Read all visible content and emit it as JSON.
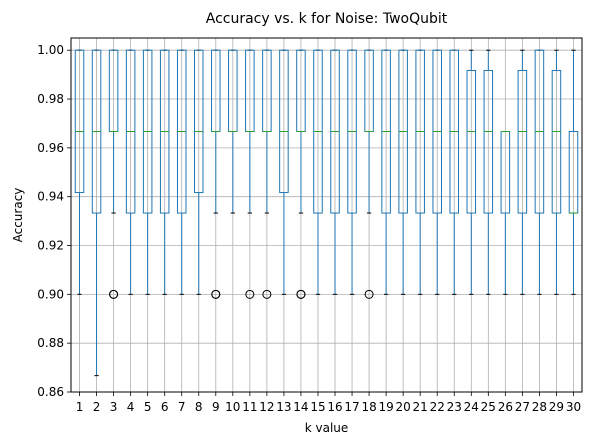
{
  "chart_data": {
    "type": "box",
    "title": "Accuracy vs. k for Noise: TwoQubit",
    "xlabel": "k value",
    "ylabel": "Accuracy",
    "ylim": [
      0.86,
      1.005
    ],
    "yticks": [
      "0.86",
      "0.88",
      "0.90",
      "0.92",
      "0.94",
      "0.96",
      "0.98",
      "1.00"
    ],
    "grid": true,
    "colors": {
      "box": "#1f77b4",
      "median": "#2ca02c",
      "whisker": "#1f77b4",
      "cap": "#000000",
      "flier": "#000000",
      "grid": "#b0b0b0"
    },
    "categories": [
      "1",
      "2",
      "3",
      "4",
      "5",
      "6",
      "7",
      "8",
      "9",
      "10",
      "11",
      "12",
      "13",
      "14",
      "15",
      "16",
      "17",
      "18",
      "19",
      "20",
      "21",
      "22",
      "23",
      "24",
      "25",
      "26",
      "27",
      "28",
      "29",
      "30"
    ],
    "boxes": [
      {
        "k": "1",
        "whislo": 0.9,
        "q1": 0.9417,
        "med": 0.9667,
        "q3": 1.0,
        "whishi": 1.0,
        "fliers": []
      },
      {
        "k": "2",
        "whislo": 0.8667,
        "q1": 0.9333,
        "med": 0.9667,
        "q3": 1.0,
        "whishi": 1.0,
        "fliers": []
      },
      {
        "k": "3",
        "whislo": 0.9333,
        "q1": 0.9667,
        "med": 0.9667,
        "q3": 1.0,
        "whishi": 1.0,
        "fliers": [
          0.9,
          0.9
        ]
      },
      {
        "k": "4",
        "whislo": 0.9,
        "q1": 0.9333,
        "med": 0.9667,
        "q3": 1.0,
        "whishi": 1.0,
        "fliers": []
      },
      {
        "k": "5",
        "whislo": 0.9,
        "q1": 0.9333,
        "med": 0.9667,
        "q3": 1.0,
        "whishi": 1.0,
        "fliers": []
      },
      {
        "k": "6",
        "whislo": 0.9,
        "q1": 0.9333,
        "med": 0.9667,
        "q3": 1.0,
        "whishi": 1.0,
        "fliers": []
      },
      {
        "k": "7",
        "whislo": 0.9,
        "q1": 0.9333,
        "med": 0.9667,
        "q3": 1.0,
        "whishi": 1.0,
        "fliers": []
      },
      {
        "k": "8",
        "whislo": 0.9,
        "q1": 0.9417,
        "med": 0.9667,
        "q3": 1.0,
        "whishi": 1.0,
        "fliers": []
      },
      {
        "k": "9",
        "whislo": 0.9333,
        "q1": 0.9667,
        "med": 0.9667,
        "q3": 1.0,
        "whishi": 1.0,
        "fliers": [
          0.9,
          0.9
        ]
      },
      {
        "k": "10",
        "whislo": 0.9333,
        "q1": 0.9667,
        "med": 0.9667,
        "q3": 1.0,
        "whishi": 1.0,
        "fliers": []
      },
      {
        "k": "11",
        "whislo": 0.9333,
        "q1": 0.9667,
        "med": 0.9667,
        "q3": 1.0,
        "whishi": 1.0,
        "fliers": [
          0.9
        ]
      },
      {
        "k": "12",
        "whislo": 0.9333,
        "q1": 0.9667,
        "med": 0.9667,
        "q3": 1.0,
        "whishi": 1.0,
        "fliers": [
          0.9
        ]
      },
      {
        "k": "13",
        "whislo": 0.9,
        "q1": 0.9417,
        "med": 0.9667,
        "q3": 1.0,
        "whishi": 1.0,
        "fliers": []
      },
      {
        "k": "14",
        "whislo": 0.9333,
        "q1": 0.9667,
        "med": 0.9667,
        "q3": 1.0,
        "whishi": 1.0,
        "fliers": [
          0.9,
          0.9
        ]
      },
      {
        "k": "15",
        "whislo": 0.9,
        "q1": 0.9333,
        "med": 0.9667,
        "q3": 1.0,
        "whishi": 1.0,
        "fliers": []
      },
      {
        "k": "16",
        "whislo": 0.9,
        "q1": 0.9333,
        "med": 0.9667,
        "q3": 1.0,
        "whishi": 1.0,
        "fliers": []
      },
      {
        "k": "17",
        "whislo": 0.9,
        "q1": 0.9333,
        "med": 0.9667,
        "q3": 1.0,
        "whishi": 1.0,
        "fliers": []
      },
      {
        "k": "18",
        "whislo": 0.9333,
        "q1": 0.9667,
        "med": 0.9667,
        "q3": 1.0,
        "whishi": 1.0,
        "fliers": [
          0.9
        ]
      },
      {
        "k": "19",
        "whislo": 0.9,
        "q1": 0.9333,
        "med": 0.9667,
        "q3": 1.0,
        "whishi": 1.0,
        "fliers": []
      },
      {
        "k": "20",
        "whislo": 0.9,
        "q1": 0.9333,
        "med": 0.9667,
        "q3": 1.0,
        "whishi": 1.0,
        "fliers": []
      },
      {
        "k": "21",
        "whislo": 0.9,
        "q1": 0.9333,
        "med": 0.9667,
        "q3": 1.0,
        "whishi": 1.0,
        "fliers": []
      },
      {
        "k": "22",
        "whislo": 0.9,
        "q1": 0.9333,
        "med": 0.9667,
        "q3": 1.0,
        "whishi": 1.0,
        "fliers": []
      },
      {
        "k": "23",
        "whislo": 0.9,
        "q1": 0.9333,
        "med": 0.9667,
        "q3": 1.0,
        "whishi": 1.0,
        "fliers": []
      },
      {
        "k": "24",
        "whislo": 0.9,
        "q1": 0.9333,
        "med": 0.9667,
        "q3": 0.9917,
        "whishi": 1.0,
        "fliers": []
      },
      {
        "k": "25",
        "whislo": 0.9,
        "q1": 0.9333,
        "med": 0.9667,
        "q3": 0.9917,
        "whishi": 1.0,
        "fliers": []
      },
      {
        "k": "26",
        "whislo": 0.9,
        "q1": 0.9333,
        "med": 0.9667,
        "q3": 0.9667,
        "whishi": 0.9667,
        "fliers": []
      },
      {
        "k": "27",
        "whislo": 0.9,
        "q1": 0.9333,
        "med": 0.9667,
        "q3": 0.9917,
        "whishi": 1.0,
        "fliers": []
      },
      {
        "k": "28",
        "whislo": 0.9,
        "q1": 0.9333,
        "med": 0.9667,
        "q3": 1.0,
        "whishi": 1.0,
        "fliers": []
      },
      {
        "k": "29",
        "whislo": 0.9,
        "q1": 0.9333,
        "med": 0.9667,
        "q3": 0.9917,
        "whishi": 1.0,
        "fliers": []
      },
      {
        "k": "30",
        "whislo": 0.9,
        "q1": 0.9333,
        "med": 0.9333,
        "q3": 0.9667,
        "whishi": 1.0,
        "fliers": []
      }
    ]
  }
}
